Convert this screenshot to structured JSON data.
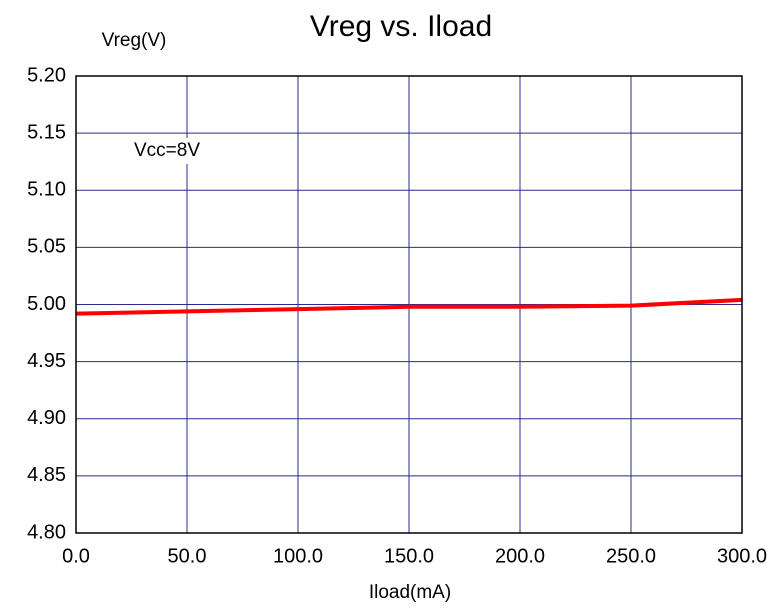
{
  "chart_data": {
    "type": "line",
    "title": "Vreg vs. Iload",
    "y_label": "Vreg(V)",
    "x_label": "Iload(mA)",
    "annotation": "Vcc=8V",
    "x": [
      0,
      50,
      100,
      150,
      200,
      250,
      300
    ],
    "series": [
      {
        "name": "Vcc=8V",
        "color": "#ff0000",
        "values": [
          4.992,
          4.994,
          4.996,
          4.998,
          4.998,
          4.999,
          5.004
        ]
      }
    ],
    "xlim": [
      0,
      300
    ],
    "xticks": [
      {
        "value": 0,
        "label": "0.0"
      },
      {
        "value": 50,
        "label": "50.0"
      },
      {
        "value": 100,
        "label": "100.0"
      },
      {
        "value": 150,
        "label": "150.0"
      },
      {
        "value": 200,
        "label": "200.0"
      },
      {
        "value": 250,
        "label": "250.0"
      },
      {
        "value": 300,
        "label": "300.0"
      }
    ],
    "ylim": [
      4.8,
      5.2
    ],
    "yticks": [
      {
        "value": 4.8,
        "label": "4.80"
      },
      {
        "value": 4.85,
        "label": "4.85"
      },
      {
        "value": 4.9,
        "label": "4.90"
      },
      {
        "value": 4.95,
        "label": "4.95"
      },
      {
        "value": 5.0,
        "label": "5.00"
      },
      {
        "value": 5.05,
        "label": "5.05"
      },
      {
        "value": 5.1,
        "label": "5.10"
      },
      {
        "value": 5.15,
        "label": "5.15"
      },
      {
        "value": 5.2,
        "label": "5.20"
      }
    ],
    "grid": true,
    "grid_color": "#2b2b8f"
  }
}
